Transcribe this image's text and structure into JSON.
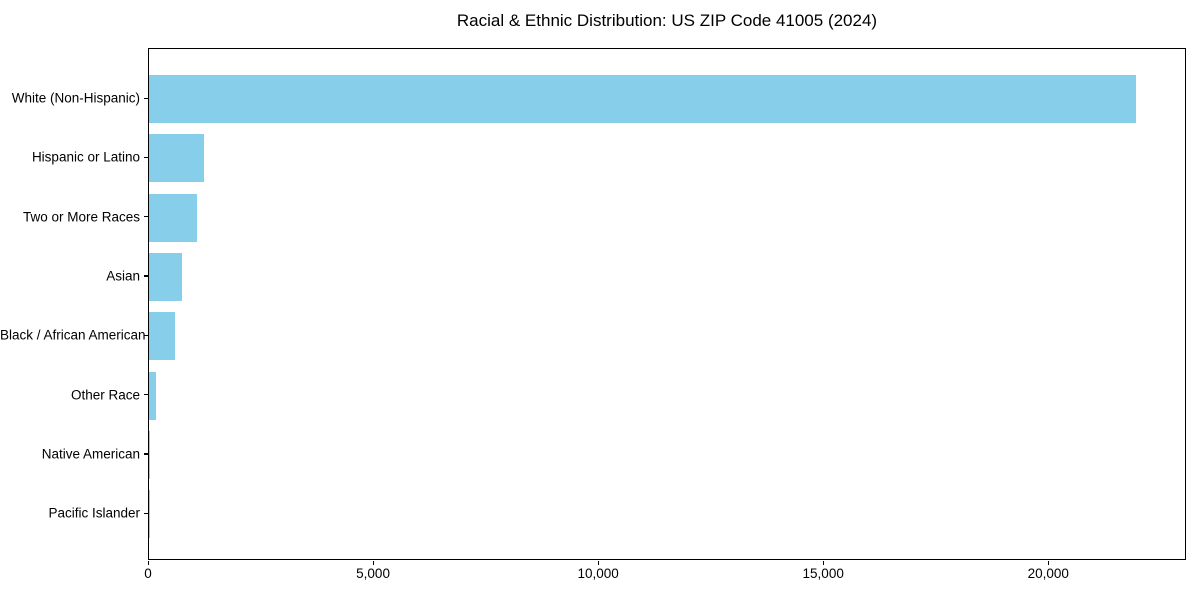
{
  "figure": {
    "background": "#ffffff",
    "text_color": "#000000"
  },
  "chart_data": {
    "type": "bar",
    "orientation": "horizontal",
    "title": "Racial & Ethnic Distribution: US ZIP Code 41005 (2024)",
    "categories": [
      "White (Non-Hispanic)",
      "Hispanic or Latino",
      "Two or More Races",
      "Asian",
      "Black / African American",
      "Other Race",
      "Native American",
      "Pacific Islander"
    ],
    "values": [
      21930,
      1220,
      1065,
      735,
      580,
      155,
      15,
      5
    ],
    "bar_color": "#87CEEB",
    "xlabel": "",
    "ylabel": "",
    "xlim": [
      0,
      23060
    ],
    "x_ticks": [
      0,
      5000,
      10000,
      15000,
      20000
    ],
    "x_tick_labels": [
      "0",
      "5,000",
      "10,000",
      "15,000",
      "20,000"
    ],
    "grid": false,
    "legend": null,
    "plot_border": "full-box"
  }
}
